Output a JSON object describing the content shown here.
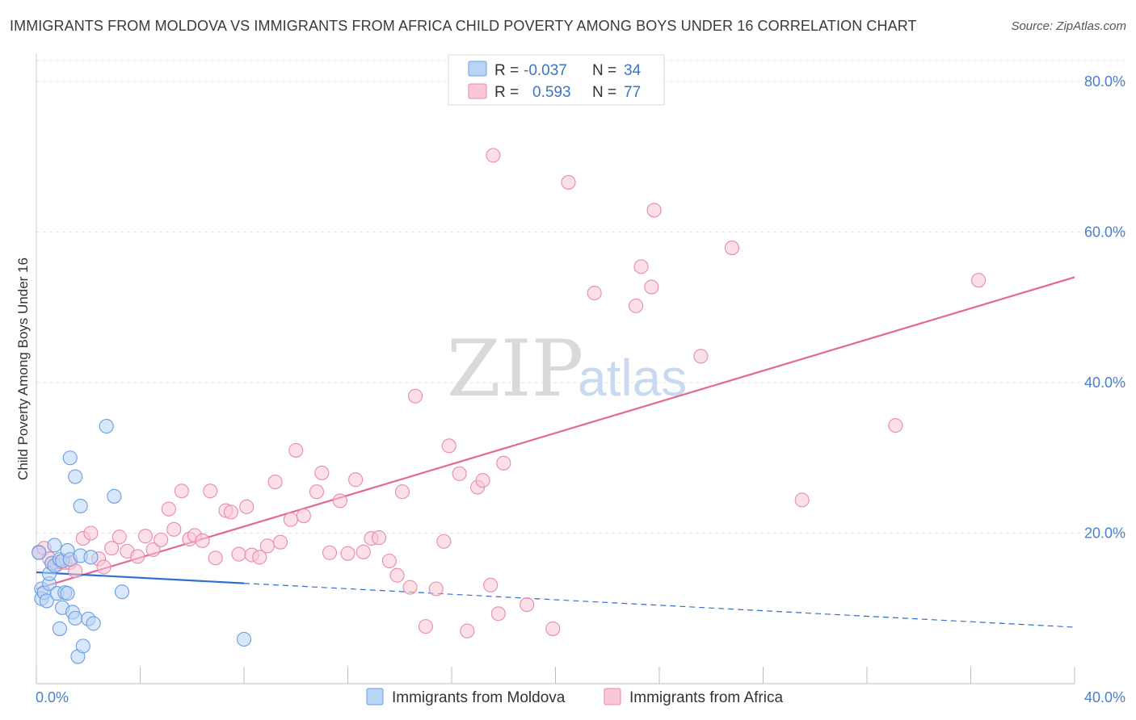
{
  "header": {
    "title": "IMMIGRANTS FROM MOLDOVA VS IMMIGRANTS FROM AFRICA CHILD POVERTY AMONG BOYS UNDER 16 CORRELATION CHART",
    "source": "Source: ZipAtlas.com"
  },
  "watermark": {
    "zip": "ZIP",
    "atlas": "atlas"
  },
  "legend": {
    "rows": [
      {
        "r_label": "R =",
        "r_value": "-0.037",
        "n_label": "N =",
        "n_value": "34"
      },
      {
        "r_label": "R =",
        "r_value": "0.593",
        "n_label": "N =",
        "n_value": "77"
      }
    ]
  },
  "bottom_legend": {
    "moldova": "Immigrants from Moldova",
    "africa": "Immigrants from Africa"
  },
  "colors": {
    "moldova_fill": "#b9d4f5",
    "moldova_stroke": "#6a9ee0",
    "moldova_line": "#2f6fcf",
    "africa_fill": "#f9c7d6",
    "africa_stroke": "#e98aaa",
    "africa_line": "#e06a93",
    "tick_text": "#4a7fcc"
  },
  "chart_data": {
    "type": "scatter",
    "title": "IMMIGRANTS FROM MOLDOVA VS IMMIGRANTS FROM AFRICA CHILD POVERTY AMONG BOYS UNDER 16 CORRELATION CHART",
    "xlabel": "",
    "ylabel": "Child Poverty Among Boys Under 16",
    "xlim": [
      0,
      40
    ],
    "ylim": [
      0,
      83
    ],
    "x_tick_labels": [
      "0.0%",
      "40.0%"
    ],
    "y_ticks": [
      20,
      40,
      60,
      80
    ],
    "y_tick_labels": [
      "20.0%",
      "40.0%",
      "60.0%",
      "80.0%"
    ],
    "grid": true,
    "series": [
      {
        "name": "Immigrants from Moldova",
        "R": -0.037,
        "N": 34,
        "trend": {
          "x_start": 0,
          "y_start": 14.8,
          "x_solid_end": 8.0,
          "x_end": 40,
          "y_end": 7.5
        },
        "points": [
          [
            0.1,
            17.4
          ],
          [
            0.2,
            12.6
          ],
          [
            0.2,
            11.3
          ],
          [
            0.3,
            12.1
          ],
          [
            0.4,
            11.0
          ],
          [
            0.5,
            13.3
          ],
          [
            0.5,
            14.6
          ],
          [
            0.6,
            16.0
          ],
          [
            0.7,
            18.4
          ],
          [
            0.7,
            15.7
          ],
          [
            0.8,
            12.0
          ],
          [
            0.9,
            16.5
          ],
          [
            0.9,
            7.3
          ],
          [
            1.0,
            10.1
          ],
          [
            1.0,
            16.3
          ],
          [
            1.1,
            12.1
          ],
          [
            1.2,
            12.0
          ],
          [
            1.2,
            17.7
          ],
          [
            1.3,
            16.5
          ],
          [
            1.3,
            30.0
          ],
          [
            1.4,
            9.5
          ],
          [
            1.5,
            27.5
          ],
          [
            1.5,
            8.7
          ],
          [
            1.6,
            3.6
          ],
          [
            1.7,
            23.6
          ],
          [
            1.7,
            17.0
          ],
          [
            1.8,
            5.0
          ],
          [
            2.0,
            8.6
          ],
          [
            2.1,
            16.8
          ],
          [
            2.2,
            8.0
          ],
          [
            2.7,
            34.2
          ],
          [
            3.0,
            24.9
          ],
          [
            3.3,
            12.2
          ],
          [
            8.0,
            5.9
          ]
        ]
      },
      {
        "name": "Immigrants from Africa",
        "R": 0.593,
        "N": 77,
        "trend": {
          "x_start": 0,
          "y_start": 12.6,
          "x_end": 40,
          "y_end": 54.0
        },
        "points": [
          [
            0.1,
            17.5
          ],
          [
            0.3,
            18.0
          ],
          [
            0.5,
            16.6
          ],
          [
            0.6,
            16.0
          ],
          [
            0.8,
            15.8
          ],
          [
            0.9,
            16.2
          ],
          [
            1.1,
            16.1
          ],
          [
            1.3,
            16.1
          ],
          [
            1.5,
            15.0
          ],
          [
            1.8,
            19.3
          ],
          [
            2.1,
            20.0
          ],
          [
            2.4,
            16.6
          ],
          [
            2.6,
            15.5
          ],
          [
            2.9,
            18.0
          ],
          [
            3.2,
            19.5
          ],
          [
            3.5,
            17.6
          ],
          [
            3.9,
            16.9
          ],
          [
            4.2,
            19.6
          ],
          [
            4.5,
            17.8
          ],
          [
            4.8,
            19.1
          ],
          [
            5.1,
            23.2
          ],
          [
            5.3,
            20.5
          ],
          [
            5.6,
            25.6
          ],
          [
            5.9,
            19.2
          ],
          [
            6.1,
            19.7
          ],
          [
            6.4,
            19.0
          ],
          [
            6.7,
            25.6
          ],
          [
            6.9,
            16.7
          ],
          [
            7.3,
            23.0
          ],
          [
            7.5,
            22.8
          ],
          [
            7.8,
            17.2
          ],
          [
            8.1,
            23.5
          ],
          [
            8.3,
            17.1
          ],
          [
            8.6,
            16.8
          ],
          [
            8.9,
            18.3
          ],
          [
            9.2,
            26.8
          ],
          [
            9.4,
            18.8
          ],
          [
            9.8,
            21.8
          ],
          [
            10.0,
            31.0
          ],
          [
            10.3,
            22.3
          ],
          [
            10.8,
            25.5
          ],
          [
            11.0,
            28.0
          ],
          [
            11.3,
            17.4
          ],
          [
            11.7,
            24.3
          ],
          [
            12.0,
            17.3
          ],
          [
            12.3,
            27.1
          ],
          [
            12.6,
            17.5
          ],
          [
            12.9,
            19.3
          ],
          [
            13.2,
            19.4
          ],
          [
            13.6,
            16.3
          ],
          [
            13.9,
            14.4
          ],
          [
            14.1,
            25.5
          ],
          [
            14.4,
            12.8
          ],
          [
            14.6,
            38.2
          ],
          [
            15.0,
            7.6
          ],
          [
            15.4,
            12.6
          ],
          [
            15.7,
            18.9
          ],
          [
            15.9,
            31.6
          ],
          [
            16.3,
            27.9
          ],
          [
            16.6,
            7.0
          ],
          [
            17.0,
            26.1
          ],
          [
            17.2,
            27.0
          ],
          [
            17.5,
            13.1
          ],
          [
            17.8,
            9.3
          ],
          [
            17.6,
            70.2
          ],
          [
            18.0,
            29.3
          ],
          [
            18.9,
            10.5
          ],
          [
            19.9,
            7.3
          ],
          [
            20.5,
            66.6
          ],
          [
            21.5,
            51.9
          ],
          [
            23.1,
            50.2
          ],
          [
            23.3,
            55.4
          ],
          [
            23.7,
            52.7
          ],
          [
            23.8,
            62.9
          ],
          [
            25.6,
            43.5
          ],
          [
            26.8,
            57.9
          ],
          [
            29.5,
            24.4
          ],
          [
            33.1,
            34.3
          ],
          [
            36.3,
            53.6
          ]
        ]
      }
    ]
  }
}
